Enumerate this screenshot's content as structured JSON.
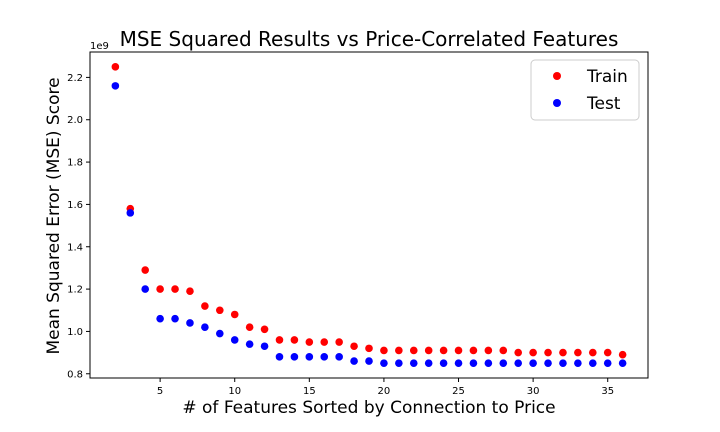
{
  "chart_data": {
    "type": "scatter",
    "title": "MSE Squared Results vs Price-Correlated Features",
    "xlabel": "# of Features Sorted by Connection to Price",
    "ylabel": "Mean Squared Error (MSE) Score",
    "y_offset_label": "1e9",
    "xlim": [
      0.3,
      37.7
    ],
    "ylim": [
      0.78,
      2.32
    ],
    "x_ticks": [
      5,
      10,
      15,
      20,
      25,
      30,
      35
    ],
    "y_ticks": [
      0.8,
      1.0,
      1.2,
      1.4,
      1.6,
      1.8,
      2.0,
      2.2
    ],
    "y_tick_labels": [
      "0.8",
      "1.0",
      "1.2",
      "1.4",
      "1.6",
      "1.8",
      "2.0",
      "2.2"
    ],
    "legend_position": "top-right",
    "grid": false,
    "series": [
      {
        "name": "Train",
        "color": "#ff0000",
        "x": [
          2,
          3,
          4,
          5,
          6,
          7,
          8,
          9,
          10,
          11,
          12,
          13,
          14,
          15,
          16,
          17,
          18,
          19,
          20,
          21,
          22,
          23,
          24,
          25,
          26,
          27,
          28,
          29,
          30,
          31,
          32,
          33,
          34,
          35,
          36
        ],
        "y": [
          2.25,
          1.58,
          1.29,
          1.2,
          1.2,
          1.19,
          1.12,
          1.1,
          1.08,
          1.02,
          1.01,
          0.96,
          0.96,
          0.95,
          0.95,
          0.95,
          0.93,
          0.92,
          0.91,
          0.91,
          0.91,
          0.91,
          0.91,
          0.91,
          0.91,
          0.91,
          0.91,
          0.9,
          0.9,
          0.9,
          0.9,
          0.9,
          0.9,
          0.9,
          0.89
        ]
      },
      {
        "name": "Test",
        "color": "#0000ff",
        "x": [
          2,
          3,
          4,
          5,
          6,
          7,
          8,
          9,
          10,
          11,
          12,
          13,
          14,
          15,
          16,
          17,
          18,
          19,
          20,
          21,
          22,
          23,
          24,
          25,
          26,
          27,
          28,
          29,
          30,
          31,
          32,
          33,
          34,
          35,
          36
        ],
        "y": [
          2.16,
          1.56,
          1.2,
          1.06,
          1.06,
          1.04,
          1.02,
          0.99,
          0.96,
          0.94,
          0.93,
          0.88,
          0.88,
          0.88,
          0.88,
          0.88,
          0.86,
          0.86,
          0.85,
          0.85,
          0.85,
          0.85,
          0.85,
          0.85,
          0.85,
          0.85,
          0.85,
          0.85,
          0.85,
          0.85,
          0.85,
          0.85,
          0.85,
          0.85,
          0.85
        ]
      }
    ]
  }
}
